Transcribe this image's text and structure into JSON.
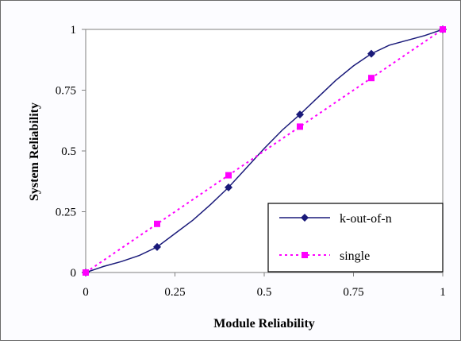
{
  "chart_data": {
    "type": "line",
    "title": "",
    "xlabel": "Module Reliability",
    "ylabel": "System Reliability",
    "xlim": [
      0,
      1
    ],
    "ylim": [
      0,
      1
    ],
    "x_ticks": [
      "0",
      "0.25",
      "0.5",
      "0.75",
      "1"
    ],
    "y_ticks": [
      "0",
      "0.25",
      "0.5",
      "0.75",
      "1"
    ],
    "grid": false,
    "legend_position": "bottom-right",
    "series": [
      {
        "name": "k-out-of-n",
        "color": "#1a1a7a",
        "line_style": "solid",
        "marker": "diamond",
        "curve_x": [
          0,
          0.05,
          0.1,
          0.15,
          0.2,
          0.25,
          0.3,
          0.35,
          0.4,
          0.45,
          0.5,
          0.55,
          0.6,
          0.65,
          0.7,
          0.75,
          0.8,
          0.85,
          0.9,
          0.95,
          1
        ],
        "curve_y": [
          0,
          0.025,
          0.045,
          0.07,
          0.105,
          0.16,
          0.215,
          0.28,
          0.35,
          0.43,
          0.51,
          0.585,
          0.65,
          0.72,
          0.79,
          0.85,
          0.9,
          0.935,
          0.955,
          0.975,
          1
        ],
        "points": [
          {
            "x": 0,
            "y": 0
          },
          {
            "x": 0.2,
            "y": 0.105
          },
          {
            "x": 0.4,
            "y": 0.35
          },
          {
            "x": 0.6,
            "y": 0.65
          },
          {
            "x": 0.8,
            "y": 0.9
          },
          {
            "x": 1,
            "y": 1
          }
        ]
      },
      {
        "name": "single",
        "color": "#ff00ff",
        "line_style": "dotted",
        "marker": "square",
        "points": [
          {
            "x": 0,
            "y": 0
          },
          {
            "x": 0.2,
            "y": 0.2
          },
          {
            "x": 0.4,
            "y": 0.4
          },
          {
            "x": 0.6,
            "y": 0.6
          },
          {
            "x": 0.8,
            "y": 0.8
          },
          {
            "x": 1,
            "y": 1
          }
        ]
      }
    ]
  }
}
